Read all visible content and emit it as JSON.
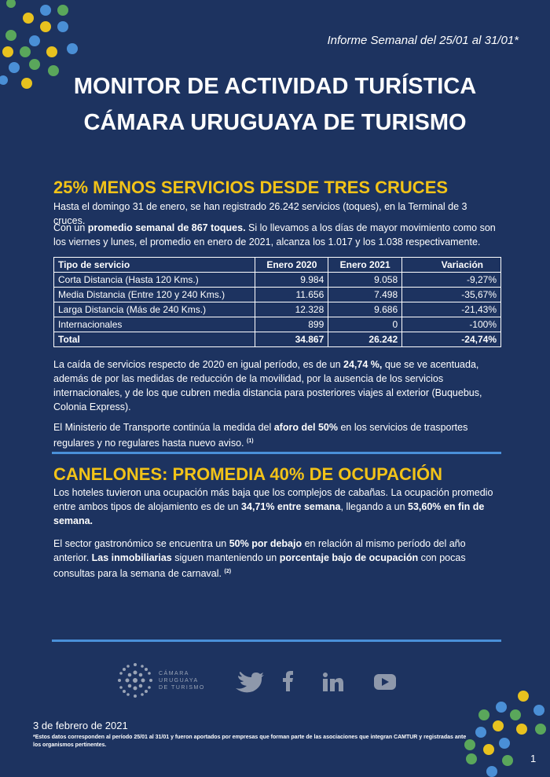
{
  "header": {
    "report_period": "Informe Semanal del 25/01 al 31/01*",
    "title_line1": "MONITOR DE ACTIVIDAD TURÍSTICA",
    "title_line2": "CÁMARA URUGUAYA DE TURISMO"
  },
  "sections": [
    {
      "heading": "25% MENOS SERVICIOS DESDE TRES CRUCES",
      "paragraphs": [
        [
          {
            "text": "Hasta el domingo 31 de enero, se han registrado 26.242 servicios (toques), en la Terminal de 3 cruces."
          }
        ],
        [
          {
            "text": "Con un "
          },
          {
            "text": "promedio semanal de 867 toques.",
            "style": "bold"
          },
          {
            "text": " Si lo llevamos a los días de mayor movimiento como son los viernes y lunes, el promedio en enero de 2021, alcanza los 1.017 y los 1.038 respectivamente."
          }
        ]
      ],
      "table": {
        "header": [
          "Tipo de servicio",
          "Enero 2020",
          "Enero 2021",
          "Variación"
        ],
        "rows": [
          [
            "Corta Distancia (Hasta 120 Kms.)",
            "9.984",
            "9.058",
            "-9,27%"
          ],
          [
            "Media Distancia (Entre 120 y 240 Kms.)",
            "11.656",
            "7.498",
            "-35,67%"
          ],
          [
            "Larga Distancia (Más de 240 Kms.)",
            "12.328",
            "9.686",
            "-21,43%"
          ],
          [
            "Internacionales",
            "899",
            "0",
            "-100%"
          ]
        ],
        "total": [
          "Total",
          "34.867",
          "26.242",
          "-24,74%"
        ]
      },
      "paragraphs_after": [
        [
          {
            "text": "La caída de servicios respecto de 2020 en igual período, es de un "
          },
          {
            "text": "24,74 %,",
            "style": "bold"
          },
          {
            "text": " que se ve acentuada, además de por las medidas de reducción de la movilidad, por la ausencia de los servicios internacionales, y de los que cubren media distancia para posteriores viajes al exterior (Buquebus, Colonia Express)."
          }
        ],
        [
          {
            "text": "El Ministerio de Transporte continúa la medida del "
          },
          {
            "text": "aforo del 50%",
            "style": "bold"
          },
          {
            "text": " en los servicios de trasportes regulares y no regulares hasta nuevo aviso. "
          },
          {
            "text": "(1)",
            "style": "sup"
          }
        ]
      ]
    },
    {
      "heading": "CANELONES: PROMEDIA 40% DE OCUPACIÓN",
      "paragraphs": [
        [
          {
            "text": "Los hoteles tuvieron una ocupación más baja que los complejos de cabañas. La ocupación promedio entre ambos tipos de alojamiento es de un "
          },
          {
            "text": "34,71% entre semana",
            "style": "bold"
          },
          {
            "text": ", llegando a un "
          },
          {
            "text": "53,60% en fin de semana.",
            "style": "bold"
          }
        ],
        [
          {
            "text": "El sector gastronómico se encuentra un "
          },
          {
            "text": "50% por debajo",
            "style": "bold"
          },
          {
            "text": " en relación al mismo período del año anterior. "
          },
          {
            "text": "Las inmobiliarias",
            "style": "bold"
          },
          {
            "text": " siguen manteniendo un "
          },
          {
            "text": "porcentaje bajo de ocupación",
            "style": "bold"
          },
          {
            "text": " con pocas consultas para la semana de carnaval. "
          },
          {
            "text": "(2)",
            "style": "sup"
          }
        ]
      ]
    }
  ],
  "footer": {
    "logo_lines": [
      "CÁMARA",
      "URUGUAYA",
      "DE TURISMO"
    ],
    "date": "3 de febrero de 2021",
    "note": "*Estos datos corresponden al período 25/01 al 31/01 y fueron aportados por empresas que forman parte de las asociaciones que integran CAMTUR y registradas ante los organismos pertinentes.",
    "page_number": "1"
  }
}
